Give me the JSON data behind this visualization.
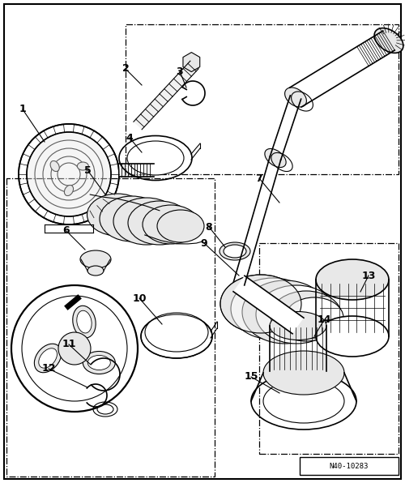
{
  "figure_width": 5.0,
  "figure_height": 5.96,
  "dpi": 100,
  "bg_color": "#ffffff",
  "line_color": "#000000",
  "part_number": "N40-10283",
  "gray_fill": "#d0d0d0",
  "light_gray": "#e8e8e8"
}
